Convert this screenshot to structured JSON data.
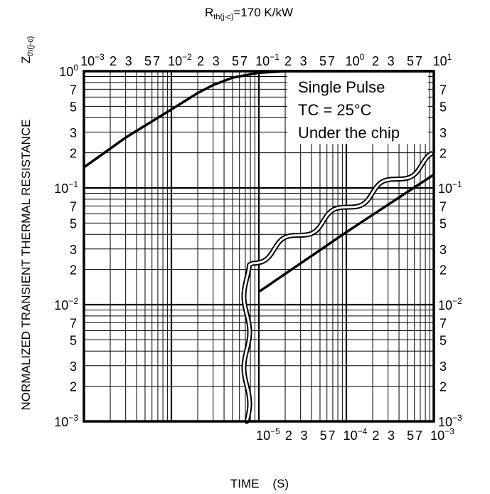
{
  "chart_data": {
    "type": "line",
    "title": "Rth(j-c)=170 K/kW",
    "title_main": "R",
    "title_sub": "th(j-c)",
    "title_rest": "=170 K/kW",
    "ylabel": "NORMALIZED TRANSIENT THERMAL RESISTANCE",
    "ylabel_symbol": "Z",
    "ylabel_symbol_sub": "th(j-c)",
    "xlabel": "TIME    (S)",
    "log_scale": true,
    "grid": true,
    "top_x_axis": {
      "range": [
        0.001,
        10
      ],
      "decades": [
        {
          "mant": "10",
          "exp": "−3"
        },
        {
          "mant": "10",
          "exp": "−2"
        },
        {
          "mant": "10",
          "exp": "−1"
        },
        {
          "mant": "10",
          "exp": "0"
        },
        {
          "mant": "10",
          "exp": "1"
        }
      ],
      "minor_labels": [
        "2",
        "3",
        "5",
        "7"
      ]
    },
    "bottom_x_axis": {
      "range": [
        1e-05,
        0.001
      ],
      "decades": [
        {
          "mant": "10",
          "exp": "−5"
        },
        {
          "mant": "10",
          "exp": "−4"
        },
        {
          "mant": "10",
          "exp": "−3"
        }
      ],
      "minor_labels": [
        "2",
        "3",
        "5",
        "7"
      ]
    },
    "y_axis": {
      "range": [
        0.001,
        1
      ],
      "decades": [
        {
          "mant": "10",
          "exp": "−3"
        },
        {
          "mant": "10",
          "exp": "−2"
        },
        {
          "mant": "10",
          "exp": "−1"
        },
        {
          "mant": "10",
          "exp": "0"
        }
      ],
      "minor_labels": [
        "2",
        "3",
        "5",
        "7"
      ]
    },
    "annotations": [
      "Single Pulse",
      "TC = 25°C",
      "Under the chip"
    ],
    "series": [
      {
        "axis": "top",
        "points": [
          [
            0.001,
            0.15
          ],
          [
            0.003,
            0.27
          ],
          [
            0.01,
            0.47
          ],
          [
            0.02,
            0.65
          ],
          [
            0.03,
            0.76
          ],
          [
            0.05,
            0.88
          ],
          [
            0.1,
            0.97
          ],
          [
            0.2,
            1.0
          ],
          [
            10,
            1.0
          ]
        ]
      },
      {
        "axis": "bottom",
        "points": [
          [
            1e-05,
            0.013
          ],
          [
            0.0001,
            0.042
          ],
          [
            0.001,
            0.13
          ]
        ]
      }
    ]
  }
}
